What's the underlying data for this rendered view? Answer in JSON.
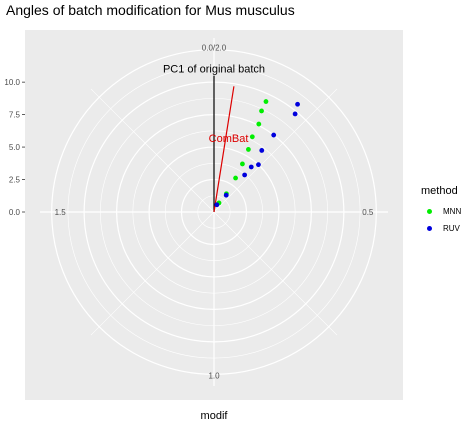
{
  "chart_data": {
    "type": "scatter",
    "coord": "polar",
    "title": "Angles of batch modification for Mus musculus",
    "xlabel": "modif",
    "ylabel": "",
    "angle_ticks": [
      {
        "value": 0.0,
        "label": "0.0/2.0"
      },
      {
        "value": 0.5,
        "label": "0.5"
      },
      {
        "value": 1.0,
        "label": "1.0"
      },
      {
        "value": 1.5,
        "label": "1.5"
      }
    ],
    "radius_ticks": [
      {
        "value": 0.0,
        "label": "0.0"
      },
      {
        "value": 2.5,
        "label": "2.5"
      },
      {
        "value": 5.0,
        "label": "5.0"
      },
      {
        "value": 7.5,
        "label": "7.5"
      },
      {
        "value": 10.0,
        "label": "10.0"
      }
    ],
    "ylim": [
      0,
      13.4
    ],
    "grid": true,
    "legend": {
      "title": "method",
      "position": "right"
    },
    "series": [
      {
        "name": "MNN",
        "color": "#00ee00",
        "points": [
          {
            "x": 0.16,
            "y": 0.8
          },
          {
            "x": 0.19,
            "y": 1.7
          },
          {
            "x": 0.18,
            "y": 3.1
          },
          {
            "x": 0.17,
            "y": 4.3
          },
          {
            "x": 0.16,
            "y": 5.5
          },
          {
            "x": 0.15,
            "y": 6.5
          },
          {
            "x": 0.15,
            "y": 7.6
          },
          {
            "x": 0.14,
            "y": 8.6
          },
          {
            "x": 0.14,
            "y": 9.4
          }
        ]
      },
      {
        "name": "RUV",
        "color": "#0000dd",
        "points": [
          {
            "x": 0.12,
            "y": 0.6
          },
          {
            "x": 0.2,
            "y": 1.6
          },
          {
            "x": 0.22,
            "y": 3.7
          },
          {
            "x": 0.22,
            "y": 4.5
          },
          {
            "x": 0.24,
            "y": 5.0
          },
          {
            "x": 0.21,
            "y": 6.0
          },
          {
            "x": 0.21,
            "y": 7.5
          },
          {
            "x": 0.22,
            "y": 9.8
          },
          {
            "x": 0.21,
            "y": 10.5
          }
        ]
      }
    ],
    "segments": [
      {
        "name": "PC1 of original batch",
        "color": "#000000",
        "angle": 0.0,
        "length": 10.5
      },
      {
        "name": "ComBat",
        "color": "#dd0000",
        "angle": 0.05,
        "length": 9.8
      }
    ]
  }
}
